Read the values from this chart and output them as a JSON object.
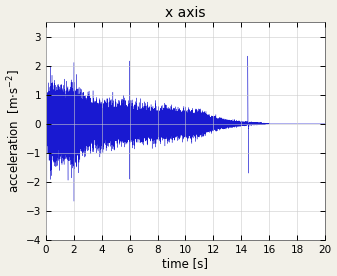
{
  "title": "x axis",
  "xlabel": "time [s]",
  "ylabel": "acceleration  [m·s$^{-2}$]",
  "xlim": [
    0,
    20
  ],
  "ylim": [
    -4,
    3.5
  ],
  "yticks": [
    -4,
    -3,
    -2,
    -1,
    0,
    1,
    2,
    3
  ],
  "xticks": [
    0,
    2,
    4,
    6,
    8,
    10,
    12,
    14,
    16,
    18,
    20
  ],
  "signal_color": "#0000CC",
  "background_color": "#F2F0E8",
  "axes_background": "#FFFFFF",
  "sample_rate": 4000,
  "duration": 20,
  "seed": 12345,
  "title_fontsize": 10,
  "label_fontsize": 8.5
}
